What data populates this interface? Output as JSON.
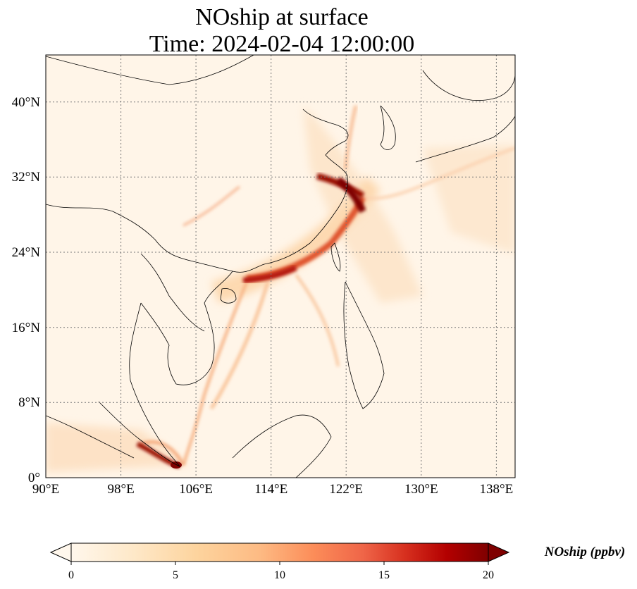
{
  "title": {
    "line1": "NOship at surface",
    "line2": "Time: 2024-02-04 12:00:00"
  },
  "map": {
    "lon_range": [
      90,
      140
    ],
    "lat_range": [
      0,
      45
    ],
    "lon_ticks": [
      "90°E",
      "98°E",
      "106°E",
      "114°E",
      "122°E",
      "130°E",
      "138°E"
    ],
    "lat_ticks": [
      "0°",
      "8°N",
      "16°N",
      "24°N",
      "32°N",
      "40°N"
    ],
    "gridlines": true,
    "colormap": "OrRd"
  },
  "colorbar": {
    "label": "NOship (ppbv)",
    "ticks": [
      "0",
      "5",
      "10",
      "15",
      "20"
    ],
    "min": 0,
    "max": 20,
    "extend": "both",
    "colors": [
      "#fff7ec",
      "#fee8c8",
      "#fdd49e",
      "#fdbb84",
      "#fc8d59",
      "#ef6548",
      "#d7301f",
      "#b30000",
      "#7f0000"
    ]
  }
}
